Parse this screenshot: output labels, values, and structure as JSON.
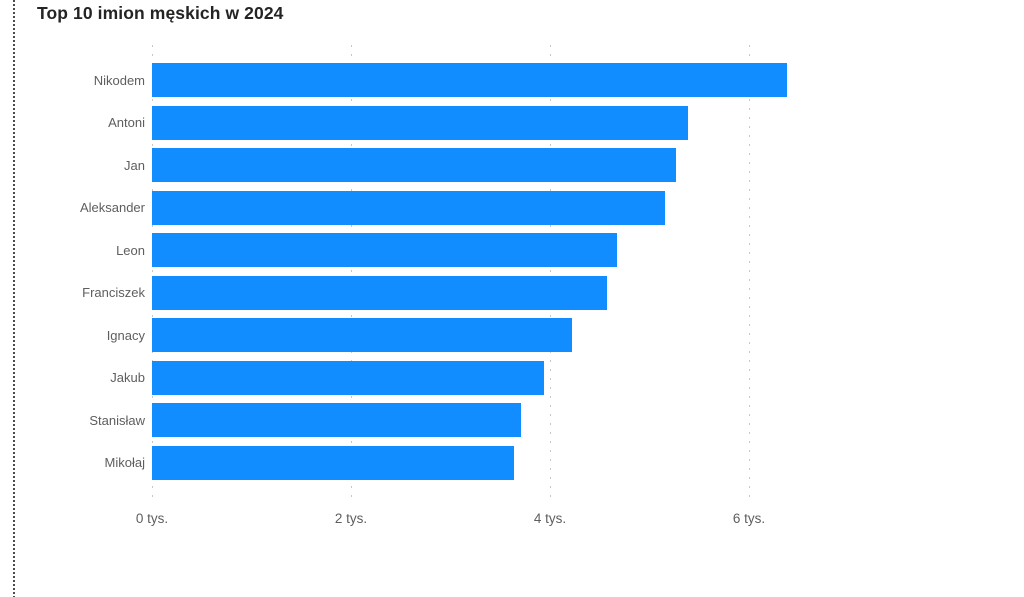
{
  "page": {
    "background_color": "#ffffff",
    "edge_guide_color": "#4c4c4c"
  },
  "chart_data": {
    "type": "bar",
    "orientation": "horizontal",
    "title": "Top 10 imion męskich w 2024",
    "categories": [
      "Nikodem",
      "Antoni",
      "Jan",
      "Aleksander",
      "Leon",
      "Franciszek",
      "Ignacy",
      "Jakub",
      "Stanisław",
      "Mikołaj"
    ],
    "values": [
      6380,
      5390,
      5270,
      5160,
      4670,
      4570,
      4220,
      3940,
      3710,
      3640
    ],
    "x_ticks": [
      {
        "value": 0,
        "label": "0 tys."
      },
      {
        "value": 2000,
        "label": "2 tys."
      },
      {
        "value": 4000,
        "label": "4 tys."
      },
      {
        "value": 6000,
        "label": "6 tys."
      }
    ],
    "xlim": [
      0,
      6600
    ],
    "xlabel": "",
    "ylabel": "",
    "legend": "none",
    "grid": "vertical-dotted",
    "bar_color": "#118DFF",
    "title_color": "#252423",
    "label_color": "#605E5C",
    "gridline_color": "#c9c7c5"
  }
}
